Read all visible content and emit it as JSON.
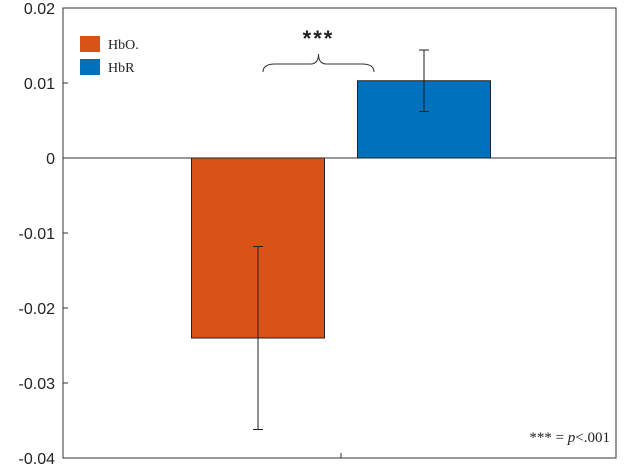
{
  "chart_data": {
    "type": "bar",
    "categories": [
      "HbO.",
      "HbR"
    ],
    "values": [
      -0.024,
      0.0103
    ],
    "error_low": [
      -0.0362,
      0.0062
    ],
    "error_high": [
      -0.0118,
      0.0144
    ],
    "colors": [
      "#d95319",
      "#0072bd"
    ],
    "title": "",
    "xlabel": "",
    "ylabel": "",
    "ylim": [
      -0.04,
      0.02
    ],
    "yticks": [
      0.02,
      0.01,
      0,
      -0.01,
      -0.02,
      -0.03,
      -0.04
    ],
    "ytick_labels": [
      "0.02",
      "0.01",
      "0",
      "-0.01",
      "-0.02",
      "-0.03",
      "-0.04"
    ],
    "grid": false,
    "legend": {
      "position": "top-left",
      "entries": [
        {
          "label": "HbO.",
          "color": "#d95319"
        },
        {
          "label": "HbR",
          "color": "#0072bd"
        }
      ]
    },
    "annotations": {
      "significance": "***",
      "note_prefix": "*** = ",
      "note_p": "p",
      "note_suffix": "<.001"
    }
  }
}
